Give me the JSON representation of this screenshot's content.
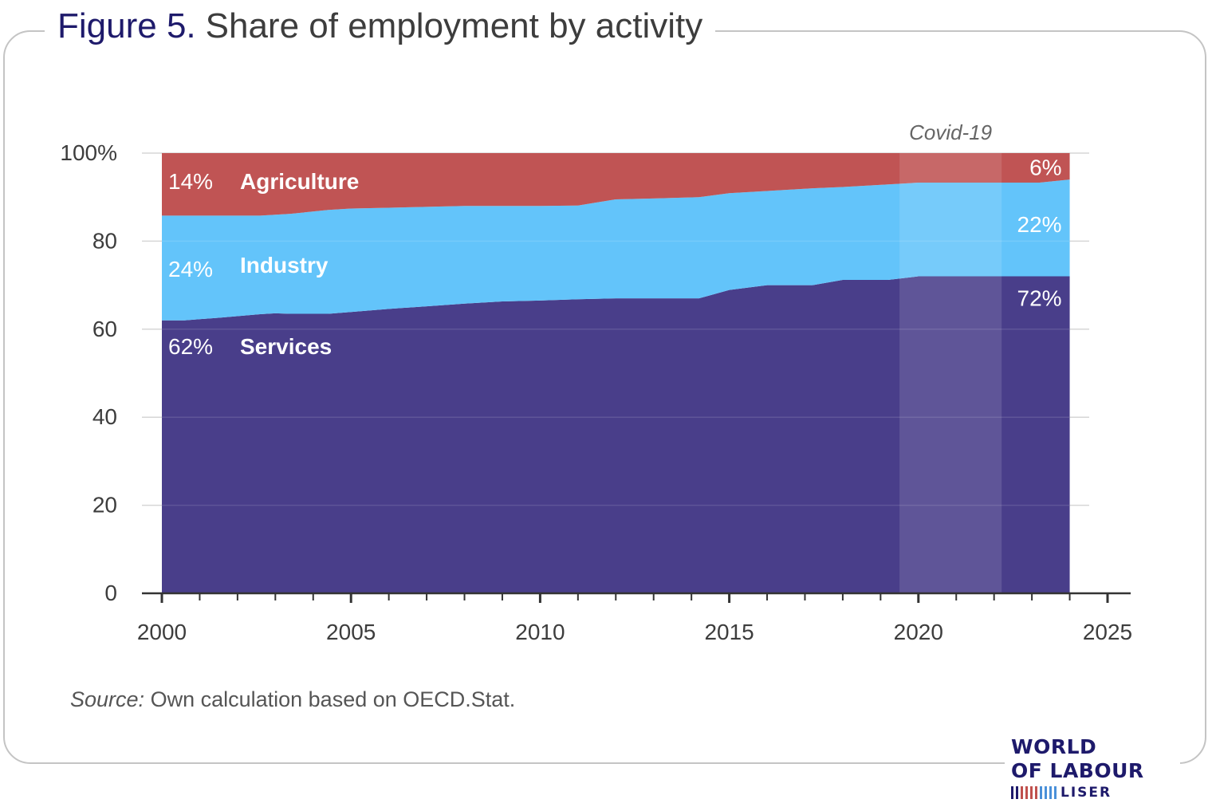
{
  "figure": {
    "number": "Figure 5.",
    "title": "Share of employment by activity",
    "source_label": "Source:",
    "source_text": " Own calculation based on OECD.Stat."
  },
  "logo": {
    "line1": "WORLD",
    "line2": "OF LABOUR",
    "line3": "LISER",
    "bar_colors": [
      "#1e1a6b",
      "#1e1a6b",
      "#c0504d",
      "#c0504d",
      "#c0504d",
      "#c0504d",
      "#4a90d9",
      "#4a90d9",
      "#4a90d9",
      "#4a90d9"
    ]
  },
  "chart_data": {
    "type": "area",
    "stacked": true,
    "x": [
      2000,
      2000.6,
      2001.5,
      2002.6,
      2003,
      2003.4,
      2004.4,
      2005,
      2006,
      2007,
      2008,
      2009,
      2010,
      2011,
      2012,
      2013,
      2014.2,
      2015,
      2016,
      2017.2,
      2018,
      2019.2,
      2020,
      2021,
      2022,
      2023.2,
      2024
    ],
    "series": [
      {
        "name": "Services",
        "color": "#493e8a",
        "values": [
          62,
          62,
          62.6,
          63.4,
          63.6,
          63.5,
          63.5,
          63.9,
          64.6,
          65.2,
          65.8,
          66.3,
          66.5,
          66.8,
          67,
          67,
          67,
          68.9,
          70,
          70,
          71.2,
          71.2,
          72,
          72,
          72,
          72,
          72
        ]
      },
      {
        "name": "Industry",
        "color": "#63c4fa",
        "values": [
          23.8,
          23.8,
          23.2,
          22.4,
          22.4,
          22.7,
          23.6,
          23.5,
          23.0,
          22.6,
          22.2,
          21.7,
          21.5,
          21.3,
          22.5,
          22.7,
          23.0,
          22.0,
          21.4,
          22.0,
          21.1,
          21.7,
          21.3,
          21.3,
          21.3,
          21.3,
          22
        ]
      },
      {
        "name": "Agriculture",
        "color": "#c05454",
        "values": [
          14.2,
          14.2,
          14.2,
          14.2,
          14.0,
          13.8,
          12.9,
          12.6,
          12.4,
          12.2,
          12.0,
          12.0,
          12.0,
          11.9,
          10.5,
          10.3,
          10.0,
          9.1,
          8.6,
          8.0,
          7.7,
          7.1,
          6.7,
          6.7,
          6.7,
          6.7,
          6
        ]
      }
    ],
    "labels_start": {
      "services": "62%",
      "industry": "24%",
      "agriculture": "14%"
    },
    "labels_end": {
      "services": "72%",
      "industry": "22%",
      "agriculture": "6%"
    },
    "series_labels": {
      "services": "Services",
      "industry": "Industry",
      "agriculture": "Agriculture"
    },
    "xlim": [
      2000,
      2025
    ],
    "ylim": [
      0,
      100
    ],
    "x_ticks": [
      2000,
      2005,
      2010,
      2015,
      2020,
      2025
    ],
    "y_ticks": [
      0,
      20,
      40,
      60,
      80,
      100
    ],
    "y_tick_labels": [
      "0",
      "20",
      "40",
      "60",
      "80",
      "100%"
    ],
    "grid": true,
    "highlight": {
      "label": "Covid-19",
      "from": 2019.5,
      "to": 2022.2
    }
  }
}
